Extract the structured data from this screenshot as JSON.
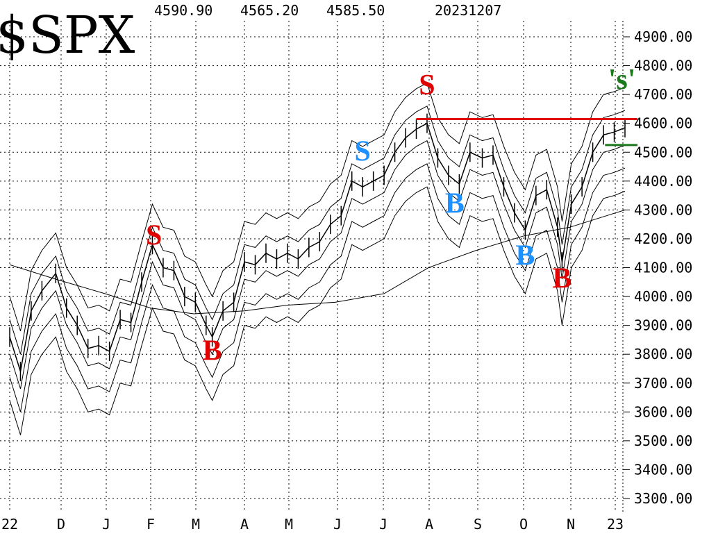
{
  "header": {
    "symbol": "$SPX",
    "high": "4590.90",
    "low": "4565.20",
    "close": "4585.50",
    "date": "20231207"
  },
  "chart_data": {
    "type": "line",
    "title": "$SPX",
    "y_range": [
      3240,
      4960
    ],
    "grid": true,
    "y_ticks": [
      "4900.00",
      "4800.00",
      "4700.00",
      "4600.00",
      "4500.00",
      "4400.00",
      "4300.00",
      "4200.00",
      "4100.00",
      "4000.00",
      "3900.00",
      "3800.00",
      "3700.00",
      "3600.00",
      "3500.00",
      "3400.00",
      "3300.00"
    ],
    "x_ticks": [
      "22",
      "D",
      "J",
      "F",
      "M",
      "A",
      "M",
      "J",
      "J",
      "A",
      "S",
      "O",
      "N",
      "23"
    ],
    "price_series_label": "",
    "price_points": [
      [
        "2022-11-01",
        3860
      ],
      [
        "2022-11-08",
        3740
      ],
      [
        "2022-11-15",
        3950
      ],
      [
        "2022-11-22",
        4020
      ],
      [
        "2022-12-01",
        4080
      ],
      [
        "2022-12-08",
        3960
      ],
      [
        "2022-12-15",
        3900
      ],
      [
        "2022-12-22",
        3820
      ],
      [
        "2022-12-29",
        3830
      ],
      [
        "2023-01-05",
        3810
      ],
      [
        "2023-01-12",
        3920
      ],
      [
        "2023-01-19",
        3910
      ],
      [
        "2023-01-26",
        4050
      ],
      [
        "2023-02-02",
        4180
      ],
      [
        "2023-02-09",
        4100
      ],
      [
        "2023-02-16",
        4090
      ],
      [
        "2023-02-23",
        4000
      ],
      [
        "2023-03-02",
        3980
      ],
      [
        "2023-03-09",
        3900
      ],
      [
        "2023-03-13",
        3860
      ],
      [
        "2023-03-20",
        3950
      ],
      [
        "2023-03-27",
        3980
      ],
      [
        "2023-04-03",
        4120
      ],
      [
        "2023-04-10",
        4110
      ],
      [
        "2023-04-17",
        4150
      ],
      [
        "2023-04-24",
        4130
      ],
      [
        "2023-05-01",
        4150
      ],
      [
        "2023-05-08",
        4130
      ],
      [
        "2023-05-15",
        4170
      ],
      [
        "2023-05-22",
        4190
      ],
      [
        "2023-05-29",
        4250
      ],
      [
        "2023-06-05",
        4280
      ],
      [
        "2023-06-12",
        4400
      ],
      [
        "2023-06-19",
        4380
      ],
      [
        "2023-06-26",
        4400
      ],
      [
        "2023-07-03",
        4420
      ],
      [
        "2023-07-10",
        4500
      ],
      [
        "2023-07-17",
        4550
      ],
      [
        "2023-07-24",
        4580
      ],
      [
        "2023-07-31",
        4600
      ],
      [
        "2023-08-07",
        4480
      ],
      [
        "2023-08-14",
        4420
      ],
      [
        "2023-08-21",
        4390
      ],
      [
        "2023-08-28",
        4500
      ],
      [
        "2023-09-05",
        4480
      ],
      [
        "2023-09-12",
        4490
      ],
      [
        "2023-09-19",
        4380
      ],
      [
        "2023-09-26",
        4290
      ],
      [
        "2023-10-03",
        4230
      ],
      [
        "2023-10-10",
        4350
      ],
      [
        "2023-10-17",
        4370
      ],
      [
        "2023-10-24",
        4240
      ],
      [
        "2023-10-27",
        4120
      ],
      [
        "2023-11-02",
        4320
      ],
      [
        "2023-11-09",
        4380
      ],
      [
        "2023-11-16",
        4500
      ],
      [
        "2023-11-23",
        4560
      ],
      [
        "2023-11-30",
        4570
      ],
      [
        "2023-12-07",
        4585
      ]
    ],
    "moving_average_points": [
      [
        "2022-11-01",
        4110
      ],
      [
        "2022-12-01",
        4060
      ],
      [
        "2023-01-02",
        4010
      ],
      [
        "2023-02-01",
        3960
      ],
      [
        "2023-03-01",
        3940
      ],
      [
        "2023-04-03",
        3950
      ],
      [
        "2023-05-01",
        3970
      ],
      [
        "2023-06-01",
        3980
      ],
      [
        "2023-07-03",
        4010
      ],
      [
        "2023-08-01",
        4100
      ],
      [
        "2023-09-01",
        4160
      ],
      [
        "2023-10-02",
        4210
      ],
      [
        "2023-11-01",
        4240
      ],
      [
        "2023-12-07",
        4300
      ]
    ],
    "envelope_offsets": [
      {
        "name": "",
        "offset": 140
      },
      {
        "name": "",
        "offset": -140
      }
    ],
    "signals": [
      {
        "label": "S",
        "date": "2023-02-03",
        "value": 4180,
        "color": "#e00000"
      },
      {
        "label": "B",
        "date": "2023-03-13",
        "value": 3780,
        "color": "#e00000"
      },
      {
        "label": "S",
        "date": "2023-06-19",
        "value": 4470,
        "color": "#1e90ff"
      },
      {
        "label": "S",
        "date": "2023-07-31",
        "value": 4700,
        "color": "#e00000"
      },
      {
        "label": "B",
        "date": "2023-08-18",
        "value": 4290,
        "color": "#1e90ff"
      },
      {
        "label": "B",
        "date": "2023-10-03",
        "value": 4110,
        "color": "#1e90ff"
      },
      {
        "label": "B",
        "date": "2023-10-27",
        "value": 4030,
        "color": "#e00000"
      },
      {
        "label": "'s'",
        "date": "2023-12-05",
        "value": 4720,
        "color": "#1a7a1a"
      }
    ],
    "reference_lines": [
      {
        "value": 4615,
        "start": "2023-07-24",
        "end": "2023-12-07",
        "color": "#e00000"
      },
      {
        "value": 4525,
        "start": "2023-11-24",
        "end": "2023-12-07",
        "color": "#1a7a1a"
      }
    ]
  }
}
